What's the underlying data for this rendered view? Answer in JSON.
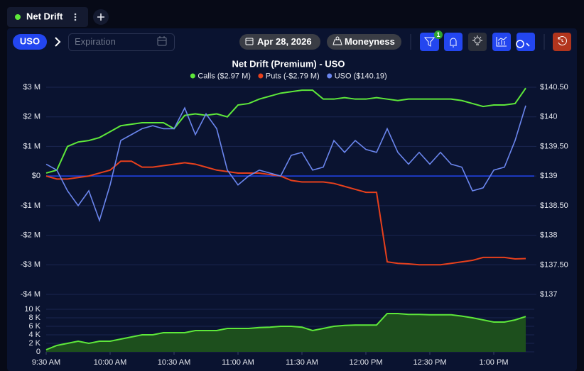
{
  "tab": {
    "label": "Net Drift"
  },
  "toolbar": {
    "symbol": "USO",
    "expiration_placeholder": "Expiration",
    "date": "Apr 28, 2026",
    "moneyness": "Moneyness",
    "filter_badge": "1"
  },
  "chart_data": [
    {
      "type": "line",
      "title": "Net Drift (Premium) - USO",
      "x": [
        "9:30 AM",
        "9:35 AM",
        "9:40 AM",
        "9:45 AM",
        "9:50 AM",
        "9:55 AM",
        "10:00 AM",
        "10:05 AM",
        "10:10 AM",
        "10:15 AM",
        "10:20 AM",
        "10:25 AM",
        "10:30 AM",
        "10:35 AM",
        "10:40 AM",
        "10:45 AM",
        "10:50 AM",
        "10:55 AM",
        "11:00 AM",
        "11:05 AM",
        "11:10 AM",
        "11:15 AM",
        "11:20 AM",
        "11:25 AM",
        "11:30 AM",
        "11:35 AM",
        "11:40 AM",
        "11:45 AM",
        "11:50 AM",
        "11:55 AM",
        "12:00 PM",
        "12:05 PM",
        "12:10 PM",
        "12:15 PM",
        "12:20 PM",
        "12:25 PM",
        "12:30 PM",
        "12:35 PM",
        "12:40 PM",
        "12:45 PM",
        "12:50 PM",
        "12:55 PM",
        "1:00 PM",
        "1:05 PM",
        "1:10 PM",
        "1:15 PM"
      ],
      "xticks": [
        "9:30 AM",
        "10:00 AM",
        "10:30 AM",
        "11:00 AM",
        "11:30 AM",
        "12:00 PM",
        "12:30 PM",
        "1:00 PM"
      ],
      "series": [
        {
          "name": "Calls ($2.97 M)",
          "color": "#5ee83a",
          "values": [
            0.1,
            0.2,
            1.0,
            1.15,
            1.2,
            1.3,
            1.5,
            1.7,
            1.75,
            1.8,
            1.8,
            1.8,
            1.6,
            2.05,
            2.1,
            2.05,
            2.1,
            2.0,
            2.4,
            2.45,
            2.6,
            2.7,
            2.8,
            2.85,
            2.9,
            2.9,
            2.6,
            2.6,
            2.65,
            2.6,
            2.6,
            2.65,
            2.6,
            2.55,
            2.6,
            2.6,
            2.6,
            2.6,
            2.6,
            2.55,
            2.45,
            2.35,
            2.4,
            2.4,
            2.45,
            2.97
          ]
        },
        {
          "name": "Puts (-$2.79 M)",
          "color": "#e8401c",
          "values": [
            0,
            -0.1,
            -0.1,
            -0.05,
            0,
            0.1,
            0.2,
            0.5,
            0.5,
            0.3,
            0.3,
            0.35,
            0.4,
            0.45,
            0.4,
            0.3,
            0.2,
            0.15,
            0.1,
            0.1,
            0.1,
            0.05,
            0,
            -0.15,
            -0.2,
            -0.2,
            -0.2,
            -0.25,
            -0.35,
            -0.45,
            -0.55,
            -0.55,
            -2.9,
            -2.95,
            -2.97,
            -3.0,
            -3.0,
            -3.0,
            -2.95,
            -2.9,
            -2.85,
            -2.75,
            -2.75,
            -2.75,
            -2.8,
            -2.79
          ]
        },
        {
          "name": "USO ($140.19)",
          "color": "#6b86ee",
          "axis": "y2",
          "values": [
            139.2,
            139.1,
            138.75,
            138.5,
            138.75,
            138.25,
            138.85,
            139.6,
            139.7,
            139.8,
            139.85,
            139.8,
            139.8,
            140.15,
            139.7,
            140.05,
            139.8,
            139.1,
            138.85,
            139.0,
            139.1,
            139.05,
            139.0,
            139.35,
            139.4,
            139.1,
            139.15,
            139.6,
            139.4,
            139.6,
            139.45,
            139.4,
            139.8,
            139.4,
            139.2,
            139.4,
            139.2,
            139.4,
            139.2,
            139.15,
            138.75,
            138.8,
            139.1,
            139.15,
            139.6,
            140.19
          ]
        }
      ],
      "ylim": [
        -4,
        3
      ],
      "yticks": [
        {
          "value": 3,
          "label": "$3 M"
        },
        {
          "value": 2,
          "label": "$2 M"
        },
        {
          "value": 1,
          "label": "$1 M"
        },
        {
          "value": 0,
          "label": "$0"
        },
        {
          "value": -1,
          "label": "-$1 M"
        },
        {
          "value": -2,
          "label": "-$2 M"
        },
        {
          "value": -3,
          "label": "-$3 M"
        },
        {
          "value": -4,
          "label": "-$4 M"
        }
      ],
      "y2lim": [
        137,
        140.5
      ],
      "y2ticks": [
        {
          "value": 140.5,
          "label": "140.50"
        },
        140,
        {
          "value": 139.5,
          "label": "139.50"
        },
        139,
        {
          "value": 138.5,
          "label": "138.50"
        },
        138,
        {
          "value": 137.5,
          "label": "137.50"
        },
        137
      ],
      "y2tick_prefix": "$",
      "grid": true,
      "legend": "top"
    },
    {
      "type": "area",
      "series": [
        {
          "color": "#5ee83a",
          "fill": "#1d4f1d",
          "values": [
            0.5,
            1.5,
            2.0,
            2.5,
            2.0,
            2.5,
            2.5,
            3.0,
            3.5,
            4.0,
            4.0,
            4.5,
            4.5,
            4.5,
            5.0,
            5.0,
            5.0,
            5.5,
            5.5,
            5.5,
            5.7,
            5.8,
            6.0,
            6.0,
            5.8,
            5.0,
            5.5,
            6.0,
            6.2,
            6.3,
            6.3,
            6.3,
            9.0,
            9.0,
            8.8,
            8.8,
            8.7,
            8.7,
            8.7,
            8.4,
            8.0,
            7.5,
            7.0,
            7.0,
            7.5,
            8.3
          ]
        }
      ],
      "ylim": [
        0,
        10
      ],
      "yticks": [
        {
          "value": 10,
          "label": "10 K"
        },
        {
          "value": 8,
          "label": "8 K"
        },
        {
          "value": 6,
          "label": "6 K"
        },
        {
          "value": 4,
          "label": "4 K"
        },
        {
          "value": 2,
          "label": "2 K"
        },
        0
      ],
      "grid": true
    }
  ]
}
